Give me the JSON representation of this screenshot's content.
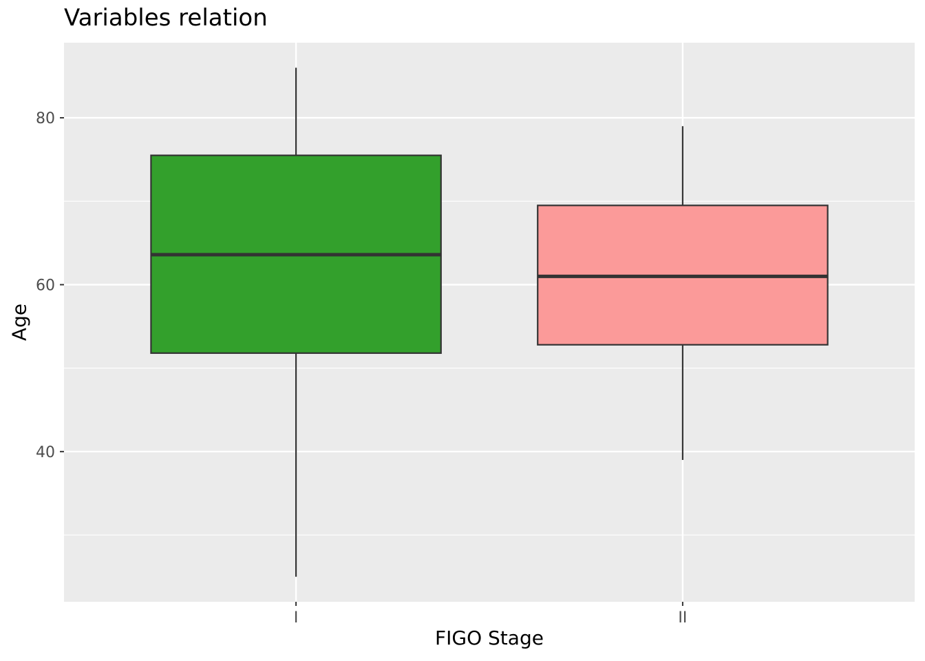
{
  "chart_data": {
    "type": "box",
    "title": "Variables relation",
    "xlabel": "FIGO Stage",
    "ylabel": "Age",
    "ylim": [
      22,
      89
    ],
    "yticks": [
      40,
      60,
      80
    ],
    "grid": true,
    "legend": "none",
    "categories": [
      "I",
      "II"
    ],
    "boxes": [
      {
        "category": "I",
        "min": 25,
        "q1": 51.8,
        "median": 63.6,
        "q3": 75.5,
        "max": 86,
        "fill": "#33A02C"
      },
      {
        "category": "II",
        "min": 39,
        "q1": 52.8,
        "median": 61.0,
        "q3": 69.5,
        "max": 79,
        "fill": "#FB9A99"
      }
    ]
  },
  "colors": {
    "panel_background": "#EBEBEB",
    "grid_major": "#FFFFFF",
    "outline": "#333333",
    "tick_text": "#4D4D4D"
  }
}
